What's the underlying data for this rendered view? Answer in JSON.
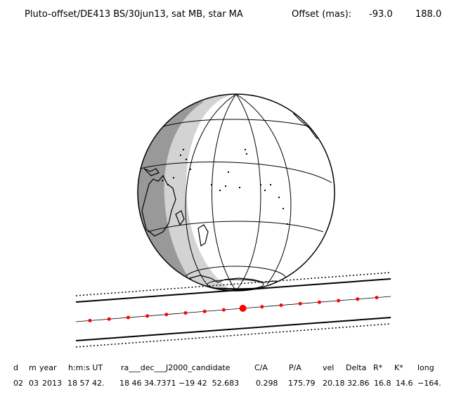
{
  "title": {
    "label": "Pluto-offset/DE413 BS/30jun13, sat MB, star MA",
    "offset_label": "Offset (mas):",
    "offset_x": "-93.0",
    "offset_y": "188.0"
  },
  "table": {
    "headers": [
      "d",
      "m",
      "year",
      "h:m:s UT",
      "ra___dec___J2000_candidate",
      "C/A",
      "P/A",
      "vel",
      "Delta",
      "R*",
      "K*",
      "long"
    ],
    "values": [
      "02",
      "03",
      "2013",
      "18 57 42.",
      "18 46 34.7371 −19 42  52.683",
      "0.298",
      "175.79",
      "20.18",
      "32.86",
      "16.8",
      "14.6",
      "−164."
    ]
  },
  "colors": {
    "path_point": "#ff0000",
    "shadow_path_edge": "#000000",
    "night_side": "#999999",
    "twilight": "#d3d3d3"
  }
}
